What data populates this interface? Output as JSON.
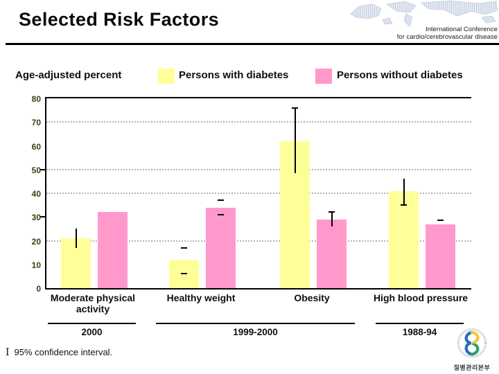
{
  "slide": {
    "title": "Selected Risk Factors",
    "conference_line1": "International Conference",
    "conference_line2": "for cardio/cerebrovascular disease",
    "footnote_symbol": "I",
    "footnote_text": "95% confidence interval.",
    "logo_caption": "질병관리본부"
  },
  "legend": {
    "axis_unit_label": "Age-adjusted percent",
    "items": [
      {
        "label": "Persons with diabetes",
        "color": "#FFFF99"
      },
      {
        "label": "Persons without diabetes",
        "color": "#FF99CC"
      }
    ]
  },
  "chart_data": {
    "type": "bar",
    "title": "Selected Risk Factors",
    "ylabel": "Age-adjusted percent",
    "ylim": [
      0,
      80
    ],
    "yticks": [
      0,
      10,
      20,
      30,
      40,
      50,
      60,
      70,
      80
    ],
    "gridlines_at": [
      20,
      40,
      50,
      70
    ],
    "axis_side_ticks_at": [
      30,
      50
    ],
    "grid_style": "dotted",
    "legend_position": "top",
    "categories": [
      "Moderate physical activity",
      "Healthy weight",
      "Obesity",
      "High blood pressure"
    ],
    "series": [
      {
        "name": "Persons with diabetes",
        "color": "#FFFF99",
        "values": [
          21,
          12,
          62,
          41
        ],
        "confidence_intervals": [
          {
            "style": "line",
            "cap": "none",
            "lo": 17,
            "hi": 25
          },
          {
            "style": "dashes",
            "lo": 6,
            "hi": 17
          },
          {
            "style": "line",
            "cap": "top",
            "lo": 48.5,
            "hi": 76
          },
          {
            "style": "line",
            "cap": "bottom",
            "lo": 35,
            "hi": 46
          }
        ]
      },
      {
        "name": "Persons without diabetes",
        "color": "#FF99CC",
        "values": [
          32,
          34,
          29,
          27
        ],
        "confidence_intervals": [
          null,
          {
            "style": "dashes",
            "lo": 31,
            "hi": 37
          },
          {
            "style": "line",
            "cap": "top",
            "lo": 26,
            "hi": 32
          },
          {
            "style": "dashes",
            "lo": null,
            "hi": 28.5
          }
        ]
      }
    ],
    "period_brackets": [
      {
        "label": "2000",
        "from_group": 0,
        "to_group": 0
      },
      {
        "label": "1999-2000",
        "from_group": 1,
        "to_group": 2
      },
      {
        "label": "1988-94",
        "from_group": 3,
        "to_group": 3
      }
    ]
  }
}
